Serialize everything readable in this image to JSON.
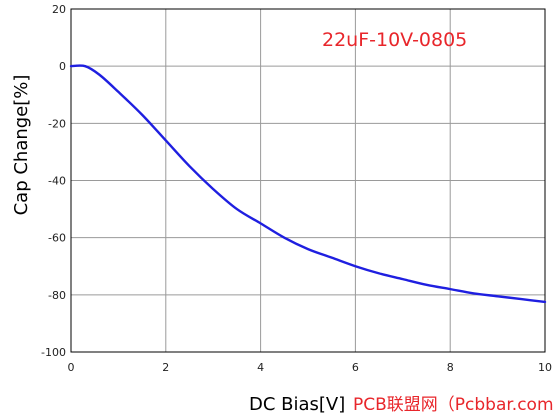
{
  "chart_data": {
    "type": "line",
    "title": "",
    "xlabel": "DC Bias[V]",
    "ylabel": "Cap Change[%]",
    "xlim": [
      0,
      10
    ],
    "ylim": [
      -100,
      20
    ],
    "xticks": [
      0,
      2,
      4,
      6,
      8,
      10
    ],
    "yticks": [
      20,
      0,
      -20,
      -40,
      -60,
      -80,
      -100
    ],
    "grid": true,
    "annotation": "22uF-10V-0805",
    "watermark": "PCB联盟网（Pcbbar.com）",
    "colors": {
      "series": "#1f1fe0",
      "annotation": "#e8262b",
      "watermark": "#e8262b",
      "grid": "#9a9a9a"
    },
    "series": [
      {
        "x": [
          0,
          0.3,
          0.6,
          1.0,
          1.5,
          2.0,
          2.5,
          3.0,
          3.5,
          4.0,
          4.5,
          5.0,
          5.5,
          6.0,
          6.5,
          7.0,
          7.5,
          8.0,
          8.5,
          9.0,
          9.5,
          10.0
        ],
        "y": [
          0,
          0,
          -3,
          -9,
          -17,
          -26,
          -35,
          -43,
          -50,
          -55,
          -60,
          -64,
          -67,
          -70,
          -72.5,
          -74.5,
          -76.5,
          -78,
          -79.5,
          -80.5,
          -81.5,
          -82.5
        ]
      }
    ]
  }
}
